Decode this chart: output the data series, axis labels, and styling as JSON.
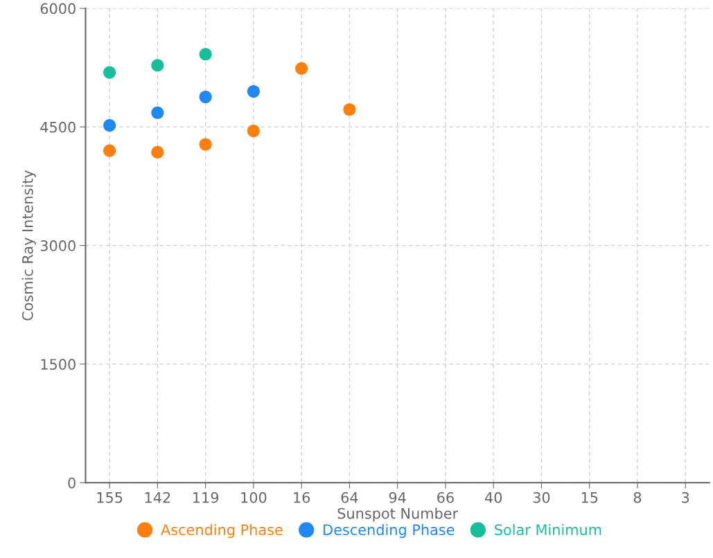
{
  "chart_data": {
    "type": "scatter",
    "xlabel": "Sunspot Number",
    "ylabel": "Cosmic Ray Intensity",
    "categories": [
      "155",
      "142",
      "119",
      "100",
      "16",
      "64",
      "94",
      "66",
      "40",
      "30",
      "15",
      "8",
      "3"
    ],
    "series": [
      {
        "name": "Ascending Phase",
        "color": "#ff7f0e",
        "values": [
          4200,
          4180,
          4280,
          4450,
          5240,
          4720,
          null,
          null,
          null,
          null,
          null,
          null,
          null
        ]
      },
      {
        "name": "Descending Phase",
        "color": "#1f88f5",
        "values": [
          4520,
          4680,
          4880,
          4950,
          null,
          null,
          null,
          null,
          null,
          null,
          null,
          null,
          null
        ]
      },
      {
        "name": "Solar Minimum",
        "color": "#17bf99",
        "values": [
          5190,
          5280,
          5420,
          null,
          null,
          null,
          null,
          null,
          null,
          null,
          null,
          null,
          null
        ]
      }
    ],
    "ylim": [
      0,
      6000
    ],
    "yticks": [
      0,
      1500,
      3000,
      4500,
      6000
    ],
    "grid": true,
    "legend": "bottom",
    "marker": "circle"
  }
}
